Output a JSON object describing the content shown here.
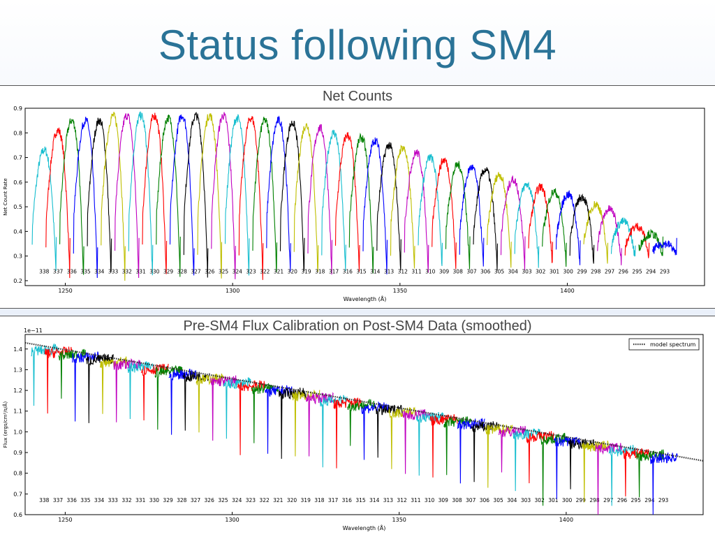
{
  "slide": {
    "title": "Status following SM4"
  },
  "chart_data": [
    {
      "type": "line",
      "title": "Net Counts",
      "xlabel": "Wavelength (Å)",
      "ylabel": "Net Count Rate",
      "xlim": [
        1238,
        1441
      ],
      "ylim": [
        0.18,
        0.9
      ],
      "xticks": [
        "1250",
        "1300",
        "1350",
        "1400"
      ],
      "yticks": [
        "0.2",
        "0.3",
        "0.4",
        "0.5",
        "0.6",
        "0.7",
        "0.8",
        "0.9"
      ],
      "grid": false,
      "orders": [
        "338",
        "337",
        "336",
        "335",
        "334",
        "333",
        "332",
        "331",
        "330",
        "329",
        "328",
        "327",
        "326",
        "325",
        "324",
        "323",
        "322",
        "321",
        "320",
        "319",
        "318",
        "317",
        "316",
        "315",
        "314",
        "313",
        "312",
        "311",
        "310",
        "309",
        "308",
        "307",
        "306",
        "305",
        "304",
        "303",
        "302",
        "301",
        "300",
        "299",
        "298",
        "297",
        "296",
        "295",
        "294",
        "293"
      ],
      "order_peaks": [
        0.73,
        0.81,
        0.85,
        0.85,
        0.85,
        0.87,
        0.87,
        0.87,
        0.87,
        0.86,
        0.87,
        0.87,
        0.87,
        0.87,
        0.86,
        0.86,
        0.85,
        0.85,
        0.84,
        0.83,
        0.82,
        0.8,
        0.79,
        0.78,
        0.77,
        0.75,
        0.74,
        0.72,
        0.7,
        0.69,
        0.67,
        0.66,
        0.65,
        0.63,
        0.61,
        0.59,
        0.58,
        0.56,
        0.55,
        0.54,
        0.51,
        0.49,
        0.44,
        0.42,
        0.39,
        0.35
      ],
      "colors": [
        "#17becf",
        "#ff0000",
        "#008000",
        "#0000ff",
        "#000000",
        "#bfbf00",
        "#c000c0",
        "#17becf",
        "#ff0000",
        "#008000",
        "#0000ff",
        "#000000",
        "#bfbf00",
        "#c000c0"
      ]
    },
    {
      "type": "line",
      "title": "Pre-SM4 Flux Calibration on Post-SM4 Data (smoothed)",
      "xlabel": "Wavelength (Å)",
      "ylabel": "Flux (ergs/cm²/s/Å)",
      "y_scale_label": "1e−11",
      "xlim": [
        1238,
        1441
      ],
      "ylim": [
        0.6,
        1.47
      ],
      "xticks": [
        "1250",
        "1300",
        "1350",
        "1400"
      ],
      "yticks": [
        "0.6",
        "0.7",
        "0.8",
        "0.9",
        "1.0",
        "1.1",
        "1.2",
        "1.3",
        "1.4"
      ],
      "legend": {
        "position": "top-right",
        "entries": [
          "model spectrum"
        ]
      },
      "model_spectrum": {
        "x": [
          1238,
          1441
        ],
        "y": [
          1.43,
          0.86
        ]
      },
      "orders": [
        "338",
        "337",
        "336",
        "335",
        "334",
        "333",
        "332",
        "331",
        "330",
        "329",
        "328",
        "327",
        "326",
        "325",
        "324",
        "323",
        "322",
        "321",
        "320",
        "319",
        "318",
        "317",
        "316",
        "315",
        "314",
        "313",
        "312",
        "311",
        "310",
        "309",
        "308",
        "307",
        "306",
        "305",
        "304",
        "303",
        "302",
        "301",
        "300",
        "299",
        "298",
        "297",
        "296",
        "295",
        "294",
        "293"
      ]
    }
  ]
}
